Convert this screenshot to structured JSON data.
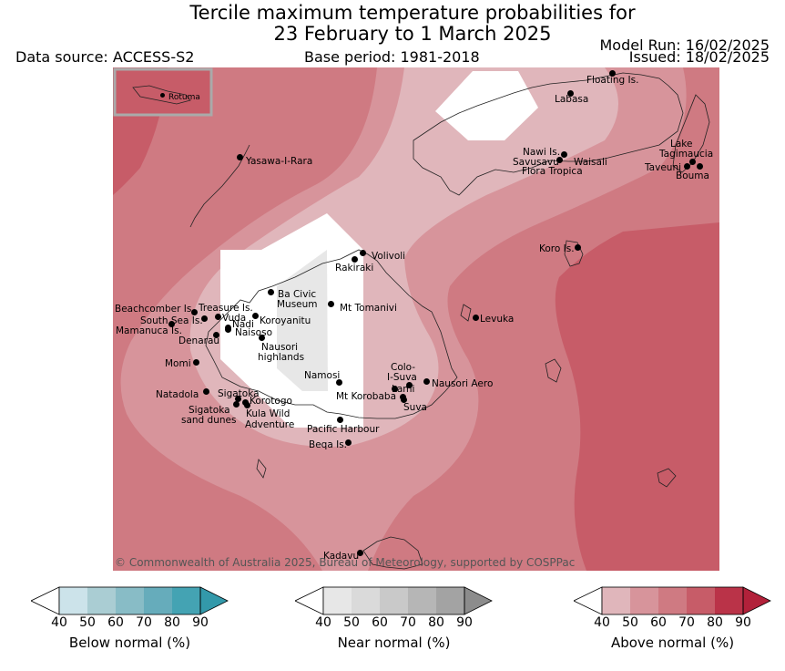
{
  "header": {
    "title_line1": "Tercile maximum temperature probabilities for",
    "title_line2": "23 February to 1 March 2025",
    "data_source": "Data source: ACCESS-S2",
    "base_period": "Base period: 1981-2018",
    "model_run": "Model Run: 16/02/2025",
    "issued": "Issued: 18/02/2025"
  },
  "map": {
    "copyright": "© Commonwealth of Australia 2025, Bureau of Meteorology, supported by COSPPac",
    "inset_label": "Rotuma",
    "places": [
      {
        "name": "Floating Is.",
        "label": "Floating Is."
      },
      {
        "name": "Labasa",
        "label": "Labasa"
      },
      {
        "name": "Nawi Is.",
        "label": "Nawi Is."
      },
      {
        "name": "Savusavu",
        "label": "Savusavu"
      },
      {
        "name": "Waisali",
        "label": "Waisali"
      },
      {
        "name": "Flora Tropica",
        "label": "Flora Tropica"
      },
      {
        "name": "Lake Tagimaucia",
        "label": "Lake"
      },
      {
        "name": "Tagimaucia",
        "label": "Tagimaucia"
      },
      {
        "name": "Taveuni",
        "label": "Taveuni"
      },
      {
        "name": "Bouma",
        "label": "Bouma"
      },
      {
        "name": "Yasawa-I-Rara",
        "label": "Yasawa-I-Rara"
      },
      {
        "name": "Koro Is.",
        "label": "Koro Is."
      },
      {
        "name": "Volivoli",
        "label": "Volivoli"
      },
      {
        "name": "Rakiraki",
        "label": "Rakiraki"
      },
      {
        "name": "Ba Civic Museum",
        "label": "Ba Civic"
      },
      {
        "name": "Museum",
        "label": "Museum"
      },
      {
        "name": "Mt Tomanivi",
        "label": "Mt Tomanivi"
      },
      {
        "name": "Beachcomber Is.",
        "label": "Beachcomber Is."
      },
      {
        "name": "Treasure Is.",
        "label": "Treasure Is."
      },
      {
        "name": "South Sea Is.",
        "label": "South Sea Is."
      },
      {
        "name": "Vuda",
        "label": "Vuda"
      },
      {
        "name": "Koroyanitu",
        "label": "Koroyanitu"
      },
      {
        "name": "Nadi",
        "label": "Nadi"
      },
      {
        "name": "Mamanuca Is.",
        "label": "Mamanuca Is."
      },
      {
        "name": "Naisoso",
        "label": "Naisoso"
      },
      {
        "name": "Denarau",
        "label": "Denarau"
      },
      {
        "name": "Nausori highlands",
        "label": "Nausori"
      },
      {
        "name": "highlands",
        "label": "highlands"
      },
      {
        "name": "Levuka",
        "label": "Levuka"
      },
      {
        "name": "Momi",
        "label": "Momi"
      },
      {
        "name": "Namosi",
        "label": "Namosi"
      },
      {
        "name": "Colo-I-Suva",
        "label": "Colo-"
      },
      {
        "name": "I-Suva",
        "label": "I-Suva"
      },
      {
        "name": "Natadola",
        "label": "Natadola"
      },
      {
        "name": "Sigatoka",
        "label": "Sigatoka"
      },
      {
        "name": "Lami",
        "label": "Lami"
      },
      {
        "name": "Nausori Aero",
        "label": "Nausori Aero"
      },
      {
        "name": "Korotogo",
        "label": "Korotogo"
      },
      {
        "name": "Mt Korobaba",
        "label": "Mt Korobaba"
      },
      {
        "name": "Sigatoka sand dunes",
        "label": "Sigatoka"
      },
      {
        "name": "sand dunes",
        "label": "sand dunes"
      },
      {
        "name": "Kula Wild Adventure",
        "label": "Kula Wild"
      },
      {
        "name": "Adventure",
        "label": "Adventure"
      },
      {
        "name": "Suva",
        "label": "Suva"
      },
      {
        "name": "Pacific Harbour",
        "label": "Pacific Harbour"
      },
      {
        "name": "Beqa Is.",
        "label": "Beqa Is."
      },
      {
        "name": "Kadavu",
        "label": "Kadavu"
      }
    ]
  },
  "colorbars": [
    {
      "title": "Below normal (%)",
      "ticks": [
        "40",
        "50",
        "60",
        "70",
        "80",
        "90"
      ],
      "colors": [
        "#ffffff",
        "#cce3ea",
        "#aacdd3",
        "#88bcc6",
        "#66acbb",
        "#44a3b3",
        "#3399aa"
      ]
    },
    {
      "title": "Near normal (%)",
      "ticks": [
        "40",
        "50",
        "60",
        "70",
        "80",
        "90"
      ],
      "colors": [
        "#ffffff",
        "#e7e7e7",
        "#dadada",
        "#c9c9c9",
        "#b6b6b6",
        "#a3a3a3",
        "#8c8c8c"
      ]
    },
    {
      "title": "Above normal (%)",
      "ticks": [
        "40",
        "50",
        "60",
        "70",
        "80",
        "90"
      ],
      "colors": [
        "#ffffff",
        "#e0b6bb",
        "#d7949b",
        "#cf7a82",
        "#c75c68",
        "#ba3348",
        "#b2213a"
      ]
    }
  ]
}
